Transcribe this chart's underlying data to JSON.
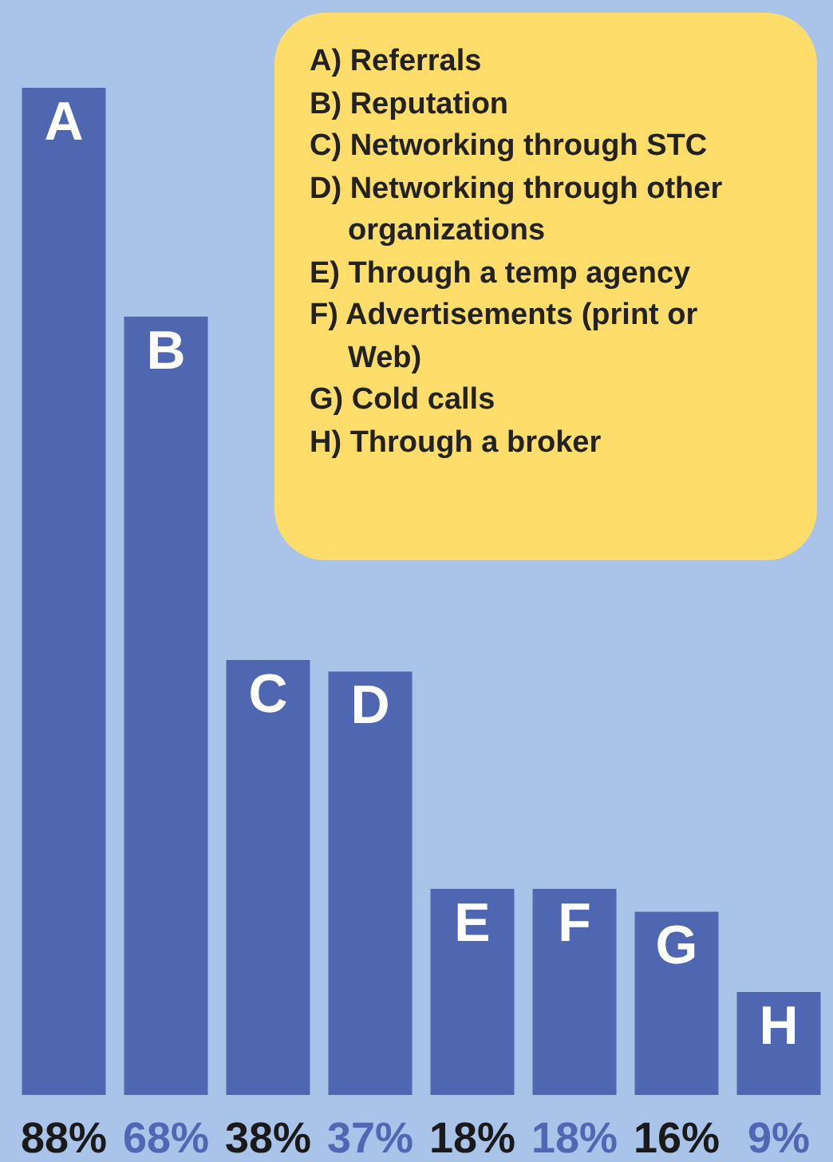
{
  "chart_data": {
    "type": "bar",
    "categories": [
      "A",
      "B",
      "C",
      "D",
      "E",
      "F",
      "G",
      "H"
    ],
    "values": [
      88,
      68,
      38,
      37,
      18,
      18,
      16,
      9
    ],
    "value_labels": [
      "88%",
      "68%",
      "38%",
      "37%",
      "18%",
      "18%",
      "16%",
      "9%"
    ],
    "color": "#4f66b0",
    "tick_labels": false,
    "legend": false,
    "annotations": [
      "A) Referrals",
      "B) Reputation",
      "C) Networking through STC",
      "D) Networking through other organizations",
      "E) Through a temp agency",
      "F) Advertisements (print or Web)",
      "G) Cold calls",
      "H) Through a broker"
    ]
  }
}
